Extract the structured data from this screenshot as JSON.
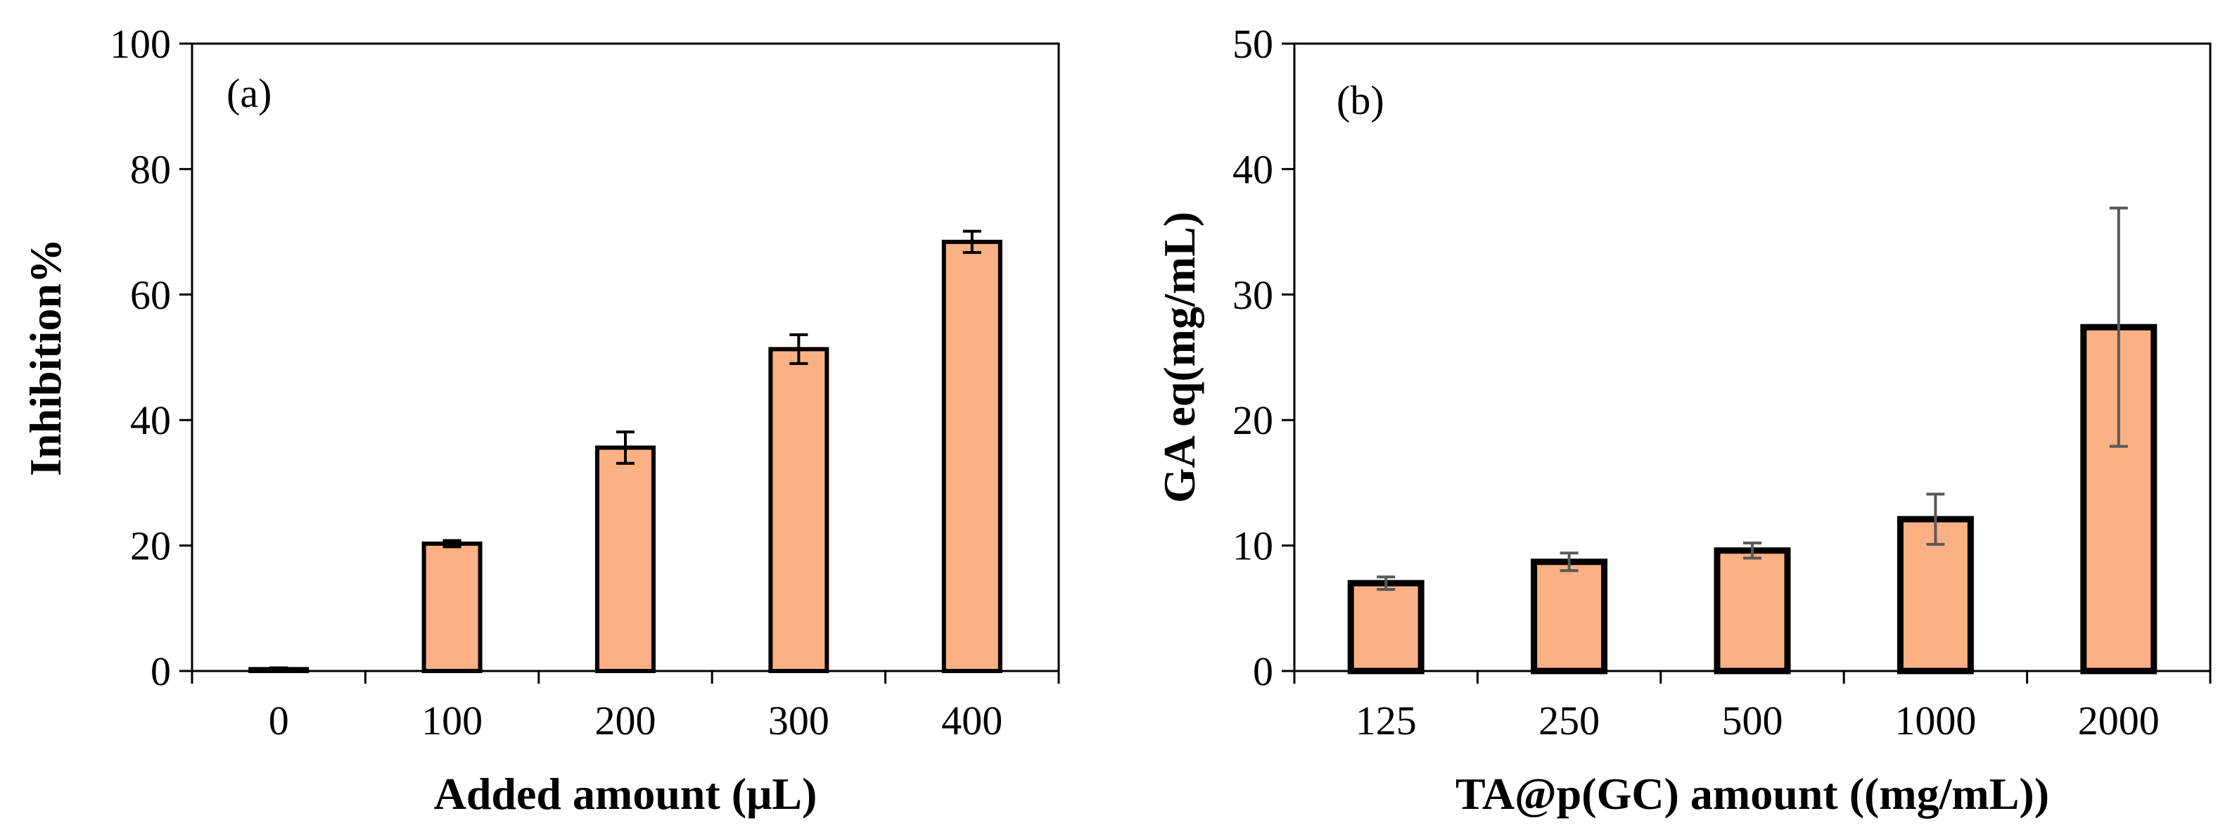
{
  "chart_data": [
    {
      "type": "bar",
      "panel_label": "(a)",
      "categories": [
        "0",
        "100",
        "200",
        "300",
        "400"
      ],
      "values": [
        0.3,
        20.3,
        35.6,
        51.3,
        68.4
      ],
      "errors": [
        0.2,
        0.5,
        2.5,
        2.3,
        1.7
      ],
      "xlabel": "Added amount (μL)",
      "ylabel": "Inhibition%",
      "ylim": [
        0,
        100
      ],
      "yticks": [
        "0",
        "20",
        "40",
        "60",
        "80",
        "100"
      ],
      "bar_color": "#FBB183",
      "error_color": "#000000"
    },
    {
      "type": "bar",
      "panel_label": "(b)",
      "categories": [
        "125",
        "250",
        "500",
        "1000",
        "2000"
      ],
      "values": [
        7.0,
        8.7,
        9.6,
        12.1,
        27.4
      ],
      "errors": [
        0.5,
        0.7,
        0.6,
        2.0,
        9.5
      ],
      "xlabel": "TA@p(GC) amount ((mg/mL))",
      "ylabel": "GA eq(mg/mL)",
      "ylim": [
        0,
        50
      ],
      "yticks": [
        "0",
        "10",
        "20",
        "30",
        "40",
        "50"
      ],
      "bar_color": "#FBB183",
      "error_color": "#595959"
    }
  ]
}
